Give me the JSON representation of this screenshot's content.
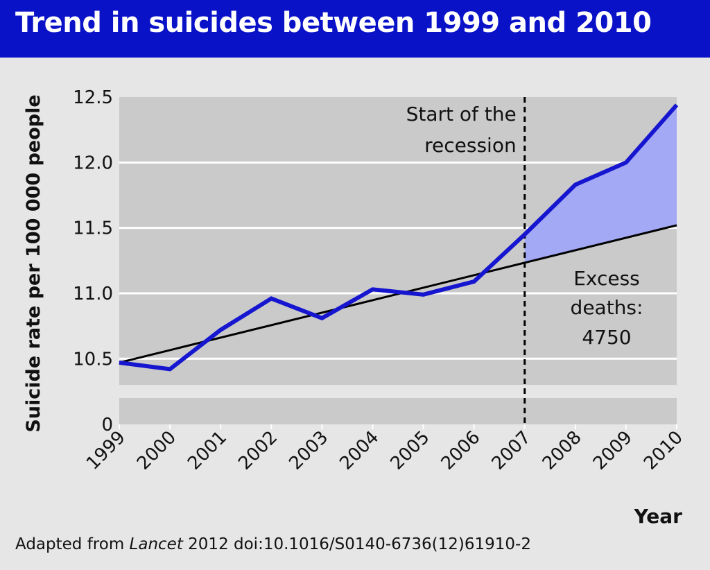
{
  "title": "Trend in suicides between 1999 and 2010",
  "footer": {
    "prefix": "Adapted from ",
    "journal": "Lancet",
    "suffix": " 2012 doi:10.1016/S0140-6736(12)61910-2"
  },
  "colors": {
    "header_bg": "#0a12c8",
    "page_bg": "#e6e6e6",
    "plot_bg": "#cacaca",
    "series_line": "#1616d0",
    "excess_fill": "#a3a9f4",
    "trend_line": "#000000",
    "grid": "#ffffff"
  },
  "chart_data": {
    "type": "line",
    "title": "Trend in suicides between 1999 and 2010",
    "xlabel": "Year",
    "ylabel": "Suicide rate per 100 000 people",
    "x": [
      "1999",
      "2000",
      "2001",
      "2002",
      "2003",
      "2004",
      "2005",
      "2006",
      "2007",
      "2008",
      "2009",
      "2010"
    ],
    "series": [
      {
        "values": [
          10.47,
          10.42,
          10.72,
          10.96,
          10.81,
          11.03,
          10.99,
          11.09,
          11.45,
          11.83,
          12.0,
          12.44
        ]
      }
    ],
    "trend": {
      "start": [
        1999,
        10.47
      ],
      "end": [
        2010,
        11.52
      ]
    },
    "yticks": [
      "0",
      "10.5",
      "11.0",
      "11.5",
      "12.0",
      "12.5"
    ],
    "ylim": [
      10.3,
      12.5
    ],
    "axis_break": true,
    "grid": true,
    "shaded_region": {
      "from": "2007",
      "to": "2010",
      "between": "series and trend"
    },
    "annotations": {
      "recession": {
        "x": "2007",
        "line1": "Start of the",
        "line2": "recession"
      },
      "excess": {
        "line1": "Excess",
        "line2": "deaths:",
        "line3": "4750"
      }
    }
  }
}
